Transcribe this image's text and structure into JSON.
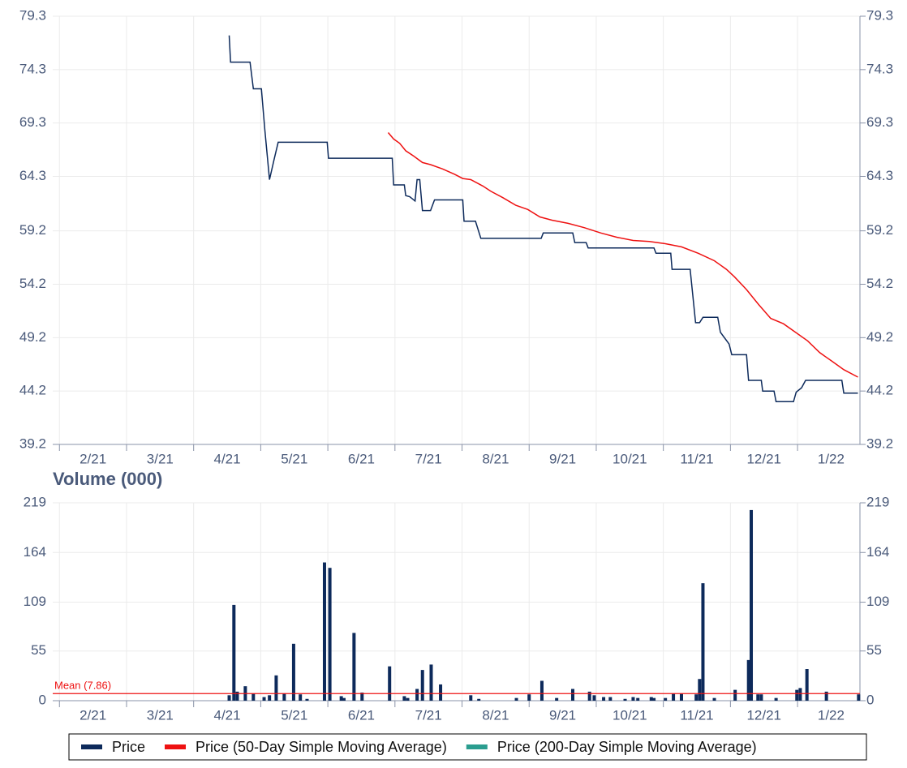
{
  "chart_data": [
    {
      "type": "line",
      "xlim": [
        0.9,
        12.93
      ],
      "xticks": [
        {
          "value": 1,
          "label": "2/21"
        },
        {
          "value": 2,
          "label": "3/21"
        },
        {
          "value": 3,
          "label": "4/21"
        },
        {
          "value": 4,
          "label": "5/21"
        },
        {
          "value": 5,
          "label": "6/21"
        },
        {
          "value": 6,
          "label": "7/21"
        },
        {
          "value": 7,
          "label": "8/21"
        },
        {
          "value": 8,
          "label": "9/21"
        },
        {
          "value": 9,
          "label": "10/21"
        },
        {
          "value": 10,
          "label": "11/21"
        },
        {
          "value": 11,
          "label": "12/21"
        },
        {
          "value": 12,
          "label": "1/22"
        }
      ],
      "ylim": [
        39.2,
        79.3
      ],
      "yticks": [
        39.2,
        44.2,
        49.2,
        54.2,
        59.2,
        64.3,
        69.3,
        74.3,
        79.3
      ],
      "grid": true,
      "series": [
        {
          "name": "Price",
          "color": "#0d2a5b",
          "x": [
            3.53,
            3.55,
            3.84,
            3.89,
            4.01,
            4.06,
            4.13,
            4.2,
            4.26,
            4.99,
            5.01,
            5.96,
            5.98,
            6.14,
            6.16,
            6.22,
            6.3,
            6.33,
            6.37,
            6.41,
            6.53,
            6.59,
            7.01,
            7.03,
            7.2,
            7.28,
            8.18,
            8.21,
            8.65,
            8.68,
            8.85,
            8.88,
            9.86,
            9.89,
            10.11,
            10.13,
            10.4,
            10.48,
            10.54,
            10.59,
            10.81,
            10.85,
            10.98,
            11.02,
            11.24,
            11.27,
            11.46,
            11.48,
            11.65,
            11.68,
            11.94,
            11.98,
            12.06,
            12.12,
            12.66,
            12.69,
            12.9
          ],
          "values": [
            77.5,
            75.0,
            75.0,
            72.5,
            72.5,
            68.7,
            64.0,
            65.9,
            67.5,
            67.5,
            66.0,
            66.0,
            63.5,
            63.5,
            62.5,
            62.4,
            62.0,
            64.0,
            64.0,
            61.1,
            61.1,
            62.1,
            62.1,
            60.1,
            60.1,
            58.5,
            58.5,
            59.0,
            59.0,
            58.1,
            58.1,
            57.6,
            57.6,
            57.1,
            57.1,
            55.6,
            55.6,
            50.6,
            50.6,
            51.1,
            51.1,
            49.7,
            48.6,
            47.6,
            47.6,
            45.2,
            45.2,
            44.2,
            44.2,
            43.2,
            43.2,
            44.1,
            44.5,
            45.2,
            45.2,
            44.0,
            44.0
          ]
        },
        {
          "name": "Price (50-Day Simple Moving Average)",
          "color": "#ee1111",
          "x": [
            5.9,
            5.98,
            6.07,
            6.16,
            6.28,
            6.41,
            6.53,
            6.71,
            6.89,
            7.01,
            7.13,
            7.31,
            7.43,
            7.61,
            7.8,
            7.98,
            8.16,
            8.34,
            8.58,
            8.82,
            9.07,
            9.31,
            9.55,
            9.79,
            10.03,
            10.27,
            10.52,
            10.76,
            10.94,
            11.06,
            11.24,
            11.42,
            11.6,
            11.79,
            11.97,
            12.15,
            12.33,
            12.51,
            12.69,
            12.9
          ],
          "values": [
            68.4,
            67.8,
            67.4,
            66.7,
            66.2,
            65.6,
            65.4,
            65.0,
            64.5,
            64.1,
            64.0,
            63.4,
            62.9,
            62.3,
            61.6,
            61.2,
            60.5,
            60.2,
            59.9,
            59.5,
            59.0,
            58.6,
            58.3,
            58.2,
            58.0,
            57.7,
            57.1,
            56.4,
            55.6,
            54.9,
            53.7,
            52.3,
            51.0,
            50.5,
            49.7,
            48.9,
            47.8,
            47.0,
            46.2,
            45.5
          ]
        },
        {
          "name": "Price (200-Day Simple Moving Average)",
          "color": "#2a9d8f",
          "x": [],
          "values": []
        }
      ]
    },
    {
      "type": "bar",
      "title": "Volume (000)",
      "color": "#0d2a5b",
      "xlim": [
        0.9,
        12.93
      ],
      "xticks": [
        {
          "value": 1,
          "label": "2/21"
        },
        {
          "value": 2,
          "label": "3/21"
        },
        {
          "value": 3,
          "label": "4/21"
        },
        {
          "value": 4,
          "label": "5/21"
        },
        {
          "value": 5,
          "label": "6/21"
        },
        {
          "value": 6,
          "label": "7/21"
        },
        {
          "value": 7,
          "label": "8/21"
        },
        {
          "value": 8,
          "label": "9/21"
        },
        {
          "value": 9,
          "label": "10/21"
        },
        {
          "value": 10,
          "label": "11/21"
        },
        {
          "value": 11,
          "label": "12/21"
        },
        {
          "value": 12,
          "label": "1/22"
        }
      ],
      "ylim": [
        0,
        219
      ],
      "yticks": [
        0,
        55,
        109,
        164,
        219
      ],
      "grid": true,
      "x": [
        3.53,
        3.6,
        3.65,
        3.77,
        3.89,
        4.05,
        4.13,
        4.23,
        4.35,
        4.49,
        4.59,
        4.69,
        4.95,
        5.03,
        5.2,
        5.24,
        5.39,
        5.51,
        5.92,
        6.14,
        6.19,
        6.33,
        6.41,
        6.54,
        6.68,
        7.13,
        7.25,
        7.81,
        8.0,
        8.19,
        8.41,
        8.65,
        8.9,
        8.97,
        9.11,
        9.21,
        9.43,
        9.55,
        9.62,
        9.82,
        9.86,
        10.03,
        10.15,
        10.27,
        10.49,
        10.54,
        10.59,
        10.76,
        11.07,
        11.27,
        11.31,
        11.41,
        11.46,
        11.68,
        11.99,
        12.04,
        12.14,
        12.43,
        12.91
      ],
      "values": [
        6,
        106,
        10,
        16,
        8,
        4,
        6,
        28,
        8,
        63,
        7,
        2,
        153,
        147,
        5,
        3,
        75,
        9,
        38,
        5,
        3,
        13,
        34,
        40,
        18,
        6,
        2,
        3,
        7,
        22,
        3,
        13,
        10,
        6,
        4,
        4,
        2,
        4,
        3,
        4,
        3,
        3,
        8,
        8,
        7,
        24,
        130,
        3,
        12,
        45,
        211,
        7,
        7,
        3,
        12,
        14,
        35,
        10,
        7
      ],
      "mean": 7.86,
      "mean_label": "Mean (7.86)",
      "mean_color": "#ee1111"
    }
  ]
}
